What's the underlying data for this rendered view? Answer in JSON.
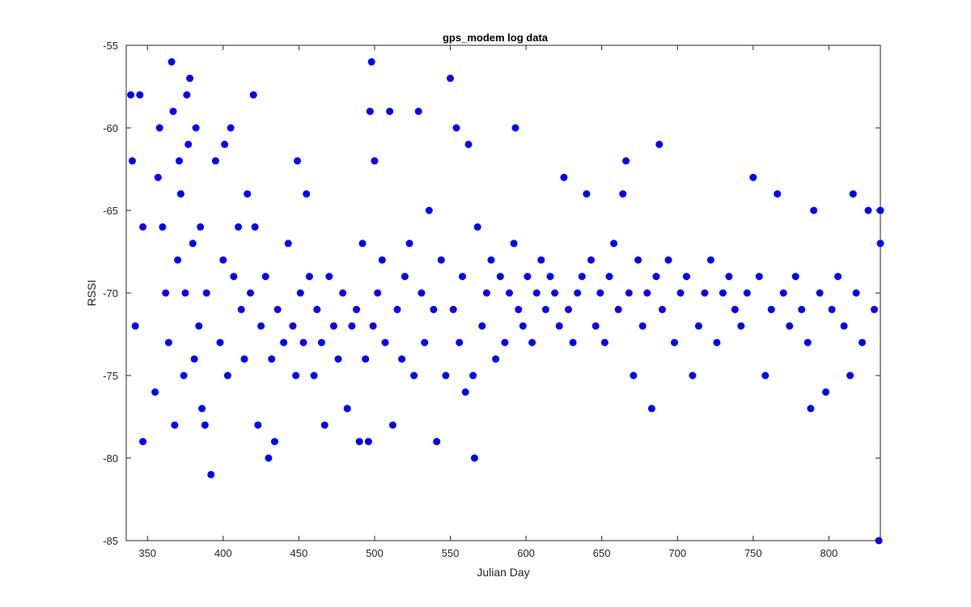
{
  "chart_data": {
    "type": "scatter",
    "title": "gps_modem log data",
    "xlabel": "Julian Day",
    "ylabel": "RSSI",
    "xlim": [
      336,
      834
    ],
    "ylim": [
      -85,
      -55
    ],
    "xticks": [
      350,
      400,
      450,
      500,
      550,
      600,
      650,
      700,
      750,
      800
    ],
    "yticks": [
      -85,
      -80,
      -75,
      -70,
      -65,
      -60,
      -55
    ],
    "xtick_labels": [
      "350",
      "400",
      "450",
      "500",
      "550",
      "600",
      "650",
      "700",
      "750",
      "800"
    ],
    "ytick_labels": [
      "-85",
      "-80",
      "-75",
      "-70",
      "-65",
      "-60",
      "-55"
    ],
    "grid": false,
    "marker_color": "#0000ff",
    "series": [
      {
        "x": [
          339,
          340,
          342,
          345,
          347,
          347,
          355,
          357,
          358,
          360,
          362,
          364,
          366,
          367,
          368,
          370,
          371,
          372,
          374,
          375,
          376,
          377,
          378,
          380,
          381,
          382,
          384,
          385,
          386,
          388,
          389,
          392,
          395,
          398,
          400,
          401,
          403,
          405,
          407,
          410,
          412,
          414,
          416,
          418,
          420,
          421,
          423,
          425,
          428,
          430,
          432,
          434,
          436,
          440,
          443,
          446,
          448,
          449,
          451,
          453,
          455,
          457,
          460,
          462,
          465,
          467,
          470,
          473,
          476,
          479,
          482,
          485,
          488,
          490,
          492,
          494,
          496,
          497,
          498,
          499,
          500,
          502,
          505,
          507,
          510,
          512,
          515,
          518,
          520,
          523,
          526,
          529,
          531,
          533,
          536,
          539,
          541,
          544,
          547,
          550,
          552,
          554,
          556,
          558,
          560,
          562,
          565,
          566,
          568,
          571,
          574,
          577,
          580,
          583,
          586,
          589,
          592,
          593,
          595,
          598,
          601,
          604,
          607,
          610,
          613,
          616,
          619,
          622,
          625,
          628,
          631,
          634,
          637,
          640,
          643,
          646,
          649,
          652,
          655,
          658,
          661,
          664,
          666,
          668,
          671,
          674,
          677,
          680,
          683,
          686,
          688,
          690,
          694,
          698,
          702,
          706,
          710,
          714,
          718,
          722,
          726,
          730,
          734,
          738,
          742,
          746,
          750,
          754,
          758,
          762,
          766,
          770,
          774,
          778,
          782,
          786,
          788,
          790,
          794,
          798,
          802,
          806,
          810,
          814,
          816,
          818,
          822,
          826,
          830,
          833,
          834,
          834
        ],
        "y": [
          -58,
          -62,
          -72,
          -58,
          -79,
          -66,
          -76,
          -63,
          -60,
          -66,
          -70,
          -73,
          -56,
          -59,
          -78,
          -68,
          -62,
          -64,
          -75,
          -70,
          -58,
          -61,
          -57,
          -67,
          -74,
          -60,
          -72,
          -66,
          -77,
          -78,
          -70,
          -81,
          -62,
          -73,
          -68,
          -61,
          -75,
          -60,
          -69,
          -66,
          -71,
          -74,
          -64,
          -70,
          -58,
          -66,
          -78,
          -72,
          -69,
          -80,
          -74,
          -79,
          -71,
          -73,
          -67,
          -72,
          -75,
          -62,
          -70,
          -73,
          -64,
          -69,
          -75,
          -71,
          -73,
          -78,
          -69,
          -72,
          -74,
          -70,
          -77,
          -72,
          -71,
          -79,
          -67,
          -74,
          -79,
          -59,
          -56,
          -72,
          -62,
          -70,
          -68,
          -73,
          -59,
          -78,
          -71,
          -74,
          -69,
          -67,
          -75,
          -59,
          -70,
          -73,
          -65,
          -71,
          -79,
          -68,
          -75,
          -57,
          -71,
          -60,
          -73,
          -69,
          -76,
          -61,
          -75,
          -80,
          -66,
          -72,
          -70,
          -68,
          -74,
          -69,
          -73,
          -70,
          -67,
          -60,
          -71,
          -72,
          -69,
          -73,
          -70,
          -68,
          -71,
          -69,
          -70,
          -72,
          -63,
          -71,
          -73,
          -70,
          -69,
          -64,
          -68,
          -72,
          -70,
          -73,
          -69,
          -67,
          -71,
          -64,
          -62,
          -70,
          -75,
          -68,
          -72,
          -70,
          -77,
          -69,
          -61,
          -71,
          -68,
          -73,
          -70,
          -69,
          -75,
          -72,
          -70,
          -68,
          -73,
          -70,
          -69,
          -71,
          -72,
          -70,
          -63,
          -69,
          -75,
          -71,
          -64,
          -70,
          -72,
          -69,
          -71,
          -73,
          -77,
          -65,
          -70,
          -76,
          -71,
          -69,
          -72,
          -75,
          -64,
          -70,
          -73,
          -65,
          -71,
          -85,
          -65,
          -67
        ]
      }
    ]
  }
}
